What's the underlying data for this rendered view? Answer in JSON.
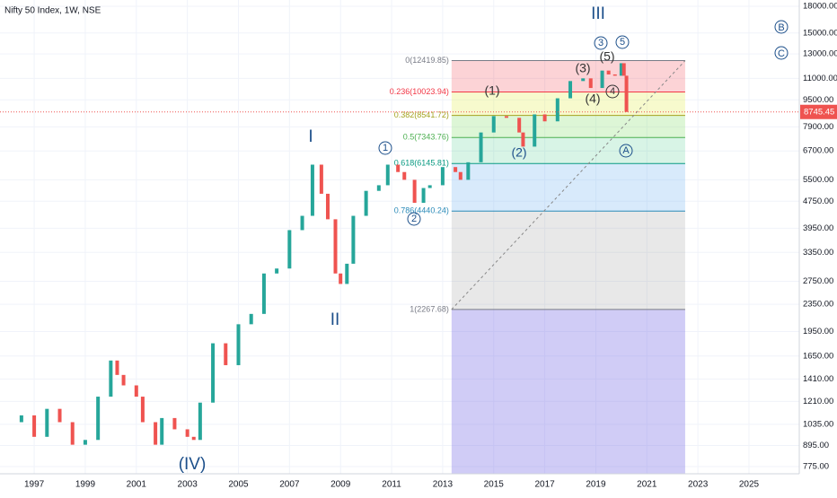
{
  "chart_data": {
    "type": "candlestick",
    "title": "Nifty 50 Index, 1W, NSE",
    "log_scale": true,
    "up_color": "#26a69a",
    "down_color": "#ef5350",
    "x": [
      1996.0,
      1996.5,
      1997.0,
      1997.5,
      1998.0,
      1998.5,
      1999.0,
      1999.5,
      2000.0,
      2000.25,
      2000.5,
      2001.0,
      2001.25,
      2001.75,
      2002.0,
      2002.5,
      2003.0,
      2003.25,
      2003.5,
      2004.0,
      2004.5,
      2005.0,
      2005.5,
      2006.0,
      2006.5,
      2007.0,
      2007.5,
      2007.9,
      2008.25,
      2008.5,
      2008.8,
      2009.0,
      2009.25,
      2009.5,
      2010.0,
      2010.5,
      2010.85,
      2011.25,
      2011.5,
      2011.9,
      2012.25,
      2012.5,
      2013.0,
      2013.5,
      2013.7,
      2014.0,
      2014.5,
      2015.0,
      2015.5,
      2016.0,
      2016.15,
      2016.6,
      2017.0,
      2017.5,
      2018.0,
      2018.5,
      2018.8,
      2019.25,
      2019.5,
      2019.75,
      2020.0,
      2020.1,
      2020.2
    ],
    "close": [
      1050,
      1100,
      950,
      1150,
      1050,
      900,
      930,
      1250,
      1600,
      1450,
      1350,
      1250,
      1050,
      900,
      1080,
      1000,
      950,
      930,
      1200,
      1800,
      1550,
      2050,
      2200,
      2900,
      3000,
      3900,
      4300,
      6100,
      5000,
      4200,
      2900,
      2700,
      3100,
      4300,
      5100,
      5300,
      6100,
      5800,
      5500,
      4700,
      5200,
      5300,
      6000,
      5800,
      5500,
      6200,
      7600,
      8500,
      8400,
      7600,
      6900,
      8600,
      8200,
      9600,
      10800,
      11000,
      10300,
      11600,
      11300,
      11200,
      12200,
      11200,
      8745.45
    ],
    "last_price": 8745.45,
    "xlim": [
      1995.66,
      2026.97
    ],
    "ylim": [
      738,
      18790
    ],
    "xticks": [
      1997,
      1999,
      2001,
      2003,
      2005,
      2007,
      2009,
      2011,
      2013,
      2015,
      2017,
      2019,
      2021,
      2023,
      2025
    ],
    "yticks": [
      {
        "value": 775,
        "label": "775.00"
      },
      {
        "value": 895,
        "label": "895.00"
      },
      {
        "value": 1035,
        "label": "1035.00"
      },
      {
        "value": 1210,
        "label": "1210.00"
      },
      {
        "value": 1410,
        "label": "1410.00"
      },
      {
        "value": 1650,
        "label": "1650.00"
      },
      {
        "value": 1950,
        "label": "1950.00"
      },
      {
        "value": 2350,
        "label": "2350.00"
      },
      {
        "value": 2750,
        "label": "2750.00"
      },
      {
        "value": 3350,
        "label": "3350.00"
      },
      {
        "value": 3950,
        "label": "3950.00"
      },
      {
        "value": 4750,
        "label": "4750.00"
      },
      {
        "value": 5500,
        "label": "5500.00"
      },
      {
        "value": 6700,
        "label": "6700.00"
      },
      {
        "value": 7900,
        "label": "7900.00"
      },
      {
        "value": 9500,
        "label": "9500.00"
      },
      {
        "value": 11000,
        "label": "11000.00"
      },
      {
        "value": 13000,
        "label": "13000.00"
      },
      {
        "value": 15000,
        "label": "15000.00"
      },
      {
        "value": 18000,
        "label": "18000.00"
      }
    ],
    "fib": {
      "x_start": 2013.35,
      "x_end": 2022.5,
      "levels": [
        {
          "label": "0(12419.85)",
          "value": 12419.85,
          "color": "#787b86",
          "fill": "rgba(242,54,69,0.22)"
        },
        {
          "label": "0.236(10023.94)",
          "value": 10023.94,
          "color": "#f23645",
          "fill": "rgba(230,240,90,0.3)"
        },
        {
          "label": "0.382(8541.72)",
          "value": 8541.72,
          "color": "#a3a31f",
          "fill": "rgba(120,220,90,0.25)"
        },
        {
          "label": "0.5(7343.76)",
          "value": 7343.76,
          "color": "#4caf50",
          "fill": "rgba(60,200,130,0.2)"
        },
        {
          "label": "0.618(6145.81)",
          "value": 6145.81,
          "color": "#089981",
          "fill": "rgba(100,170,240,0.25)"
        },
        {
          "label": "0.786(4440.24)",
          "value": 4440.24,
          "color": "#2a8ab8",
          "fill": "rgba(150,150,150,0.22)"
        },
        {
          "label": "1(2267.68)",
          "value": 2267.68,
          "color": "#787b86",
          "fill": "rgba(120,110,230,0.35)"
        }
      ]
    },
    "annotations": [
      "III",
      "B",
      "C",
      "3",
      "5",
      "(3)",
      "(5)",
      "(1)",
      "(4)",
      "4",
      "(2)",
      "A",
      "1",
      "2",
      "I",
      "II",
      "(IV)"
    ]
  }
}
